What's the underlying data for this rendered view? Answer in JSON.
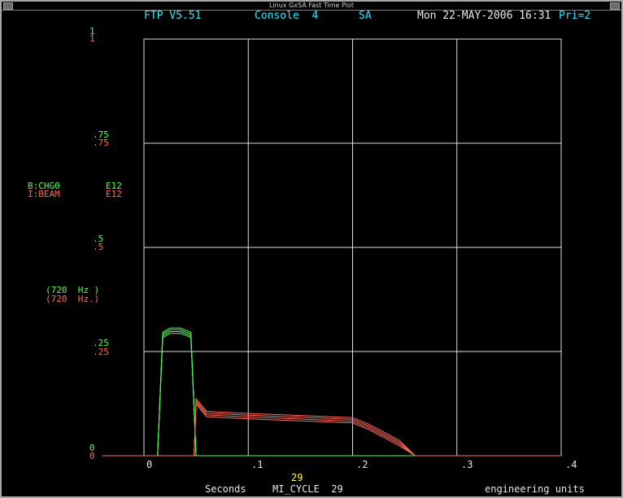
{
  "window": {
    "title": "Linux GxSA  Fast Time Plot"
  },
  "header": {
    "app": "FTP V5.51",
    "console": "Console  4",
    "sa": "SA",
    "datetime": "Mon 22-MAY-2006 16:31",
    "priority": "Pri=2"
  },
  "left_axis": {
    "ticks_green": [
      "1",
      ".75",
      ".5",
      ".25",
      "0"
    ],
    "ticks_red": [
      "1",
      ".75",
      ".5",
      ".25",
      "0"
    ]
  },
  "devices": [
    {
      "name": "B:CHG0",
      "units": "E12",
      "rate": "(720  Hz )",
      "color": "#55ff55"
    },
    {
      "name": "I:BEAM",
      "units": "E12",
      "rate": "(720  Hz.)",
      "color": "#ff6a5a"
    }
  ],
  "footer": {
    "event_top": "29",
    "x_units": "Seconds",
    "event": "MI_CYCLE  29",
    "y_units": "engineering units"
  },
  "chart_data": {
    "type": "line",
    "xlim": [
      0,
      0.4
    ],
    "ylim": [
      0,
      1
    ],
    "x_ticks": [
      "0",
      ".1",
      ".2",
      ".3",
      ".4"
    ],
    "grid": true,
    "series": [
      {
        "name": "B:CHG0",
        "color": "#55ff55",
        "x": [
          -0.04,
          0.0,
          0.013,
          0.018,
          0.025,
          0.035,
          0.045,
          0.05,
          0.06,
          0.1,
          0.15,
          0.2,
          0.25,
          0.3,
          0.35,
          0.4
        ],
        "y": [
          0.0,
          0.0,
          0.0,
          0.29,
          0.3,
          0.3,
          0.29,
          0.0,
          0.0,
          0.0,
          0.0,
          0.0,
          0.0,
          0.0,
          0.0,
          0.0
        ]
      },
      {
        "name": "I:BEAM",
        "color": "#ff6a5a",
        "x": [
          -0.04,
          0.0,
          0.048,
          0.05,
          0.06,
          0.1,
          0.15,
          0.2,
          0.215,
          0.23,
          0.245,
          0.26,
          0.3,
          0.35,
          0.4
        ],
        "y": [
          0.0,
          0.0,
          0.0,
          0.13,
          0.1,
          0.095,
          0.09,
          0.085,
          0.07,
          0.05,
          0.03,
          0.0,
          0.0,
          0.0,
          0.0
        ]
      }
    ]
  }
}
